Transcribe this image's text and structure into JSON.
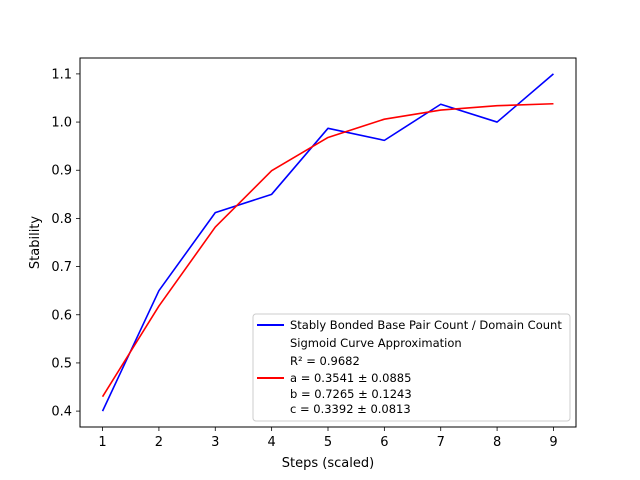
{
  "chart_data": {
    "type": "line",
    "xlabel": "Steps (scaled)",
    "ylabel": "Stability",
    "xlim": [
      0.6,
      9.4
    ],
    "ylim": [
      0.367,
      1.133
    ],
    "xticks": [
      "1",
      "2",
      "3",
      "4",
      "5",
      "6",
      "7",
      "8",
      "9"
    ],
    "yticks": [
      "0.4",
      "0.5",
      "0.6",
      "0.7",
      "0.8",
      "0.9",
      "1.0",
      "1.1"
    ],
    "grid": false,
    "legend_position": "lower-right",
    "x": [
      1,
      2,
      3,
      4,
      5,
      6,
      7,
      8,
      9
    ],
    "series": [
      {
        "name": "Stably Bonded Base Pair Count / Domain Count",
        "color": "#0000ff",
        "values": [
          0.4,
          0.65,
          0.812,
          0.85,
          0.987,
          0.962,
          1.037,
          1.0,
          1.1
        ]
      },
      {
        "name": "Sigmoid Curve Approximation",
        "color": "#ff0000",
        "values": [
          0.43,
          0.618,
          0.782,
          0.899,
          0.968,
          1.006,
          1.025,
          1.034,
          1.038
        ]
      }
    ],
    "legend_fit_lines": [
      "R² = 0.9682",
      "a = 0.3541 ± 0.0885",
      "b = 0.7265 ± 0.1243",
      "c = 0.3392 ± 0.0813"
    ]
  }
}
